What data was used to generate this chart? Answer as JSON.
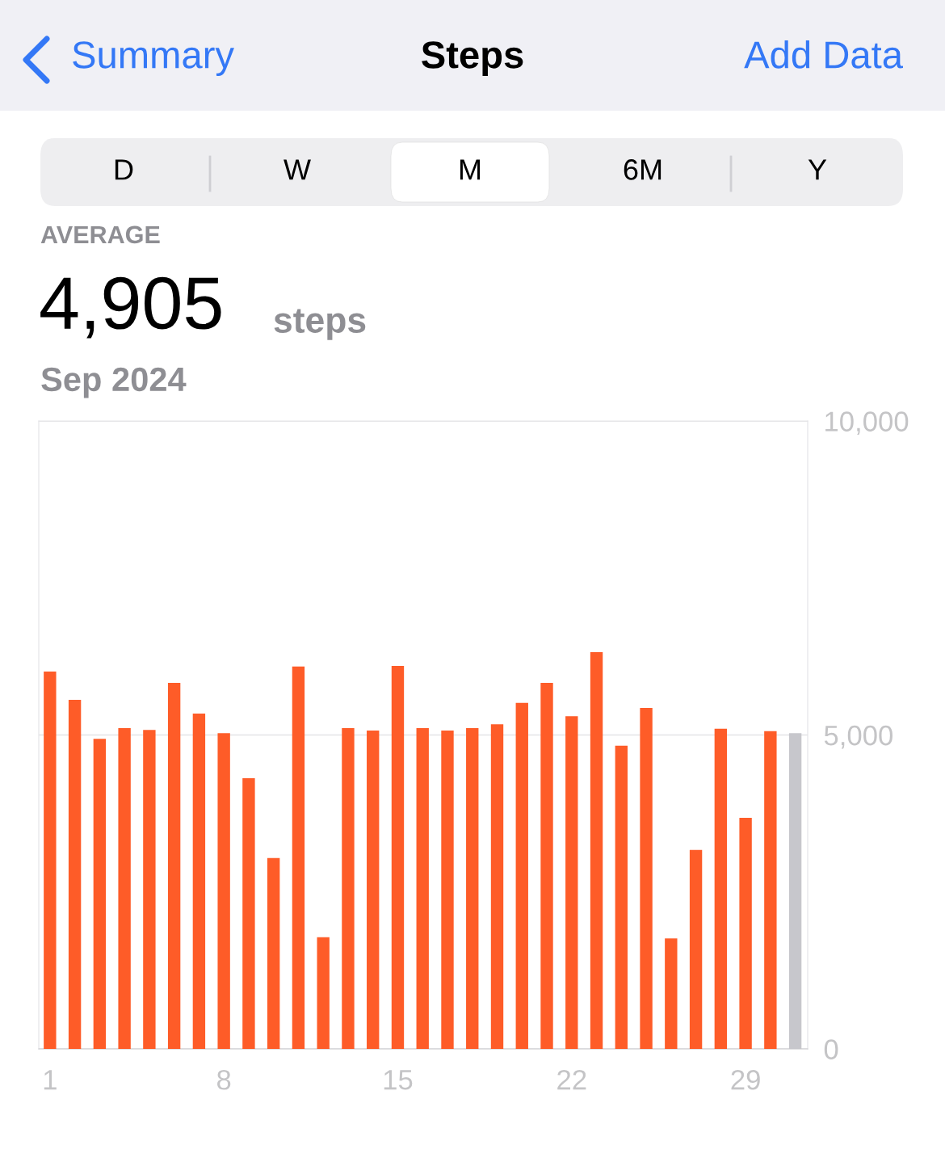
{
  "chart_data": {
    "type": "bar",
    "title": "Steps",
    "annotations": [
      "Summary",
      "Add Data",
      "D",
      "W",
      "M",
      "6M",
      "Y",
      "AVERAGE",
      "4,905",
      "steps",
      "Sep 2024"
    ],
    "categories": [
      "1",
      null,
      null,
      null,
      null,
      null,
      null,
      "8",
      null,
      null,
      null,
      null,
      null,
      null,
      "15",
      null,
      null,
      null,
      null,
      null,
      null,
      "22",
      null,
      null,
      null,
      null,
      null,
      null,
      "29",
      null,
      null
    ],
    "values": [
      6010,
      5560,
      4940,
      5110,
      5080,
      5830,
      5340,
      5030,
      4310,
      3040,
      6090,
      1780,
      5110,
      5070,
      6100,
      5110,
      5070,
      5110,
      5170,
      5510,
      5830,
      5300,
      6320,
      4830,
      5430,
      1760,
      3170,
      5100,
      3680,
      5060,
      5030
    ],
    "colors": [
      "#fe5c28",
      "#fe5c28",
      "#fe5c28",
      "#fe5c28",
      "#fe5c28",
      "#fe5c28",
      "#fe5c28",
      "#fe5c28",
      "#fe5c28",
      "#fe5c28",
      "#fe5c28",
      "#fe5c28",
      "#fe5c28",
      "#fe5c28",
      "#fe5c28",
      "#fe5c28",
      "#fe5c28",
      "#fe5c28",
      "#fe5c28",
      "#fe5c28",
      "#fe5c28",
      "#fe5c28",
      "#fe5c28",
      "#fe5c28",
      "#fe5c28",
      "#fe5c28",
      "#fe5c28",
      "#fe5c28",
      "#fe5c28",
      "#fe5c28",
      "#c7c7cc"
    ],
    "ylim": [
      0,
      10000
    ],
    "yticks": [
      0,
      {
        "value": 5000,
        "label": "5,000"
      },
      {
        "value": 10000,
        "label": "10,000"
      }
    ],
    "grid": "y",
    "legend": false
  }
}
